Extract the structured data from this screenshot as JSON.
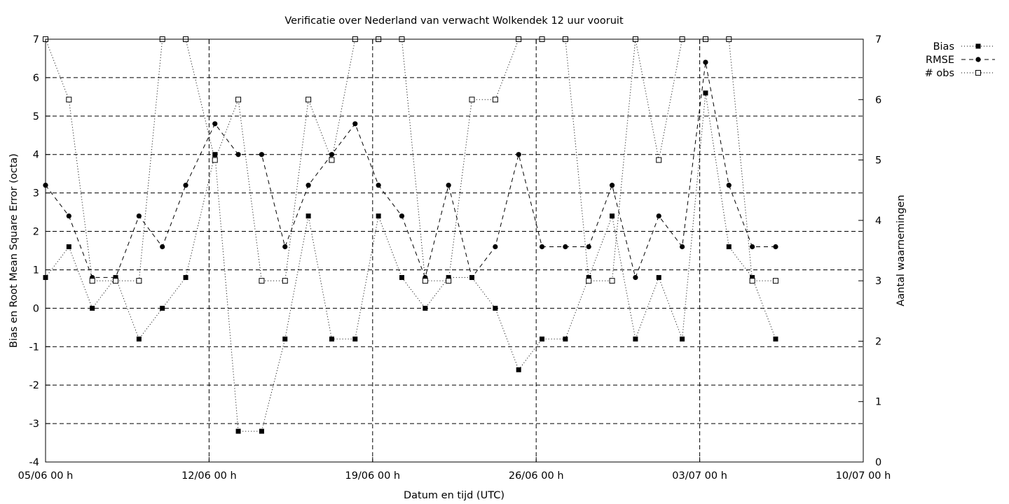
{
  "chart_data": {
    "type": "line",
    "title": "Verificatie over Nederland van verwacht Wolkendek 12 uur vooruit",
    "xlabel": "Datum en tijd (UTC)",
    "ylabel_left": "Bias en Root Mean Square Error (octa)",
    "ylabel_right": "Aantal waarnemingen",
    "ylim_left": [
      -4,
      7
    ],
    "ylim_right": [
      0,
      7
    ],
    "xlim": [
      "2023-06-05 00:00",
      "2023-07-10 00:00"
    ],
    "x_ticks": [
      "05/06 00 h",
      "12/06 00 h",
      "19/06 00 h",
      "26/06 00 h",
      "03/07 00 h",
      "10/07 00 h"
    ],
    "y_ticks_left": [
      "-4",
      "-3",
      "-2",
      "-1",
      "0",
      "1",
      "2",
      "3",
      "4",
      "5",
      "6",
      "7"
    ],
    "y_ticks_right": [
      "0",
      "1",
      "2",
      "3",
      "4",
      "5",
      "6",
      "7"
    ],
    "grid": true,
    "legend_position": "top-right outside",
    "series": [
      {
        "name": "Bias",
        "axis": "left",
        "line": "dotted",
        "marker": "filled-square",
        "points": [
          [
            "2023-06-05 00:00",
            0.8
          ],
          [
            "2023-06-06 00:00",
            1.6
          ],
          [
            "2023-06-07 00:00",
            0.0
          ],
          [
            "2023-06-08 00:00",
            0.8
          ],
          [
            "2023-06-09 00:00",
            -0.8
          ],
          [
            "2023-06-10 00:00",
            0.0
          ],
          [
            "2023-06-11 00:00",
            0.8
          ],
          [
            "2023-06-12 06:00",
            4.0
          ],
          [
            "2023-06-13 06:00",
            -3.2
          ],
          [
            "2023-06-14 06:00",
            -3.2
          ],
          [
            "2023-06-15 06:00",
            -0.8
          ],
          [
            "2023-06-16 06:00",
            2.4
          ],
          [
            "2023-06-17 06:00",
            -0.8
          ],
          [
            "2023-06-18 06:00",
            -0.8
          ],
          [
            "2023-06-19 06:00",
            2.4
          ],
          [
            "2023-06-20 06:00",
            0.8
          ],
          [
            "2023-06-21 06:00",
            0.0
          ],
          [
            "2023-06-22 06:00",
            0.8
          ],
          [
            "2023-06-23 06:00",
            0.8
          ],
          [
            "2023-06-24 06:00",
            0.0
          ],
          [
            "2023-06-25 06:00",
            -1.6
          ],
          [
            "2023-06-26 06:00",
            -0.8
          ],
          [
            "2023-06-27 06:00",
            -0.8
          ],
          [
            "2023-06-28 06:00",
            0.8
          ],
          [
            "2023-06-29 06:00",
            2.4
          ],
          [
            "2023-06-30 06:00",
            -0.8
          ],
          [
            "2023-07-01 06:00",
            0.8
          ],
          [
            "2023-07-02 06:00",
            -0.8
          ],
          [
            "2023-07-03 06:00",
            5.6
          ],
          [
            "2023-07-04 06:00",
            1.6
          ],
          [
            "2023-07-05 06:00",
            0.8
          ],
          [
            "2023-07-06 06:00",
            -0.8
          ]
        ]
      },
      {
        "name": "RMSE",
        "axis": "left",
        "line": "dashed",
        "marker": "filled-circle",
        "points": [
          [
            "2023-06-05 00:00",
            3.2
          ],
          [
            "2023-06-06 00:00",
            2.4
          ],
          [
            "2023-06-07 00:00",
            0.8
          ],
          [
            "2023-06-08 00:00",
            0.8
          ],
          [
            "2023-06-09 00:00",
            2.4
          ],
          [
            "2023-06-10 00:00",
            1.6
          ],
          [
            "2023-06-11 00:00",
            3.2
          ],
          [
            "2023-06-12 06:00",
            4.8
          ],
          [
            "2023-06-13 06:00",
            4.0
          ],
          [
            "2023-06-14 06:00",
            4.0
          ],
          [
            "2023-06-15 06:00",
            1.6
          ],
          [
            "2023-06-16 06:00",
            3.2
          ],
          [
            "2023-06-17 06:00",
            4.0
          ],
          [
            "2023-06-18 06:00",
            4.8
          ],
          [
            "2023-06-19 06:00",
            3.2
          ],
          [
            "2023-06-20 06:00",
            2.4
          ],
          [
            "2023-06-21 06:00",
            0.8
          ],
          [
            "2023-06-22 06:00",
            3.2
          ],
          [
            "2023-06-23 06:00",
            0.8
          ],
          [
            "2023-06-24 06:00",
            1.6
          ],
          [
            "2023-06-25 06:00",
            4.0
          ],
          [
            "2023-06-26 06:00",
            1.6
          ],
          [
            "2023-06-27 06:00",
            1.6
          ],
          [
            "2023-06-28 06:00",
            1.6
          ],
          [
            "2023-06-29 06:00",
            3.2
          ],
          [
            "2023-06-30 06:00",
            0.8
          ],
          [
            "2023-07-01 06:00",
            2.4
          ],
          [
            "2023-07-02 06:00",
            1.6
          ],
          [
            "2023-07-03 06:00",
            6.4
          ],
          [
            "2023-07-04 06:00",
            3.2
          ],
          [
            "2023-07-05 06:00",
            1.6
          ],
          [
            "2023-07-06 06:00",
            1.6
          ]
        ]
      },
      {
        "name": "# obs",
        "axis": "right",
        "line": "dotted",
        "marker": "open-square",
        "points": [
          [
            "2023-06-05 00:00",
            7
          ],
          [
            "2023-06-06 00:00",
            6
          ],
          [
            "2023-06-07 00:00",
            3
          ],
          [
            "2023-06-08 00:00",
            3
          ],
          [
            "2023-06-09 00:00",
            3
          ],
          [
            "2023-06-10 00:00",
            7
          ],
          [
            "2023-06-11 00:00",
            7
          ],
          [
            "2023-06-12 06:00",
            5
          ],
          [
            "2023-06-13 06:00",
            6
          ],
          [
            "2023-06-14 06:00",
            3
          ],
          [
            "2023-06-15 06:00",
            3
          ],
          [
            "2023-06-16 06:00",
            6
          ],
          [
            "2023-06-17 06:00",
            5
          ],
          [
            "2023-06-18 06:00",
            7
          ],
          [
            "2023-06-19 06:00",
            7
          ],
          [
            "2023-06-20 06:00",
            7
          ],
          [
            "2023-06-21 06:00",
            3
          ],
          [
            "2023-06-22 06:00",
            3
          ],
          [
            "2023-06-23 06:00",
            6
          ],
          [
            "2023-06-24 06:00",
            6
          ],
          [
            "2023-06-25 06:00",
            7
          ],
          [
            "2023-06-26 06:00",
            7
          ],
          [
            "2023-06-27 06:00",
            7
          ],
          [
            "2023-06-28 06:00",
            3
          ],
          [
            "2023-06-29 06:00",
            3
          ],
          [
            "2023-06-30 06:00",
            7
          ],
          [
            "2023-07-01 06:00",
            5
          ],
          [
            "2023-07-02 06:00",
            7
          ],
          [
            "2023-07-03 06:00",
            7
          ],
          [
            "2023-07-04 06:00",
            7
          ],
          [
            "2023-07-05 06:00",
            3
          ],
          [
            "2023-07-06 06:00",
            3
          ]
        ]
      }
    ]
  }
}
